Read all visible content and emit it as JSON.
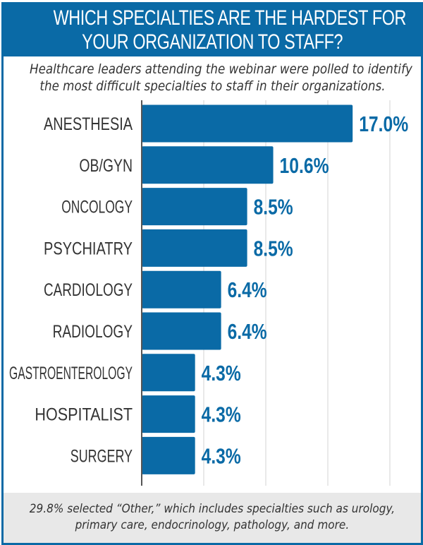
{
  "chart_data": {
    "type": "bar",
    "orientation": "horizontal",
    "title": "WHICH SPECIALTIES ARE THE HARDEST FOR YOUR ORGANIZATION TO STAFF?",
    "title_lines": [
      "WHICH SPECIALTIES ARE THE HARDEST FOR",
      "YOUR ORGANIZATION TO STAFF?"
    ],
    "subtitle_lines": [
      "Healthcare leaders attending the webinar were polled to identify",
      "the most difficult specialties to staff in their organizations."
    ],
    "categories": [
      "ANESTHESIA",
      "OB/GYN",
      "ONCOLOGY",
      "PSYCHIATRY",
      "CARDIOLOGY",
      "RADIOLOGY",
      "GASTROENTEROLOGY",
      "HOSPITALIST",
      "SURGERY"
    ],
    "values": [
      17.0,
      10.6,
      8.5,
      8.5,
      6.4,
      6.4,
      4.3,
      4.3,
      4.3
    ],
    "data_labels": [
      "17.0%",
      "10.6%",
      "8.5%",
      "8.5%",
      "6.4%",
      "6.4%",
      "4.3%",
      "4.3%",
      "4.3%"
    ],
    "xlim": [
      0,
      22
    ],
    "grid": "vertical, every 5",
    "colors": {
      "bar": "#0a6aa6",
      "label": "#0a6aa6",
      "header": "#0a6aa6",
      "footer_bg": "#e8e8e8"
    },
    "footnote_lines": [
      "29.8% selected “Other,” which includes specialties such as urology,",
      "primary care, endocrinology, pathology, and more."
    ]
  }
}
